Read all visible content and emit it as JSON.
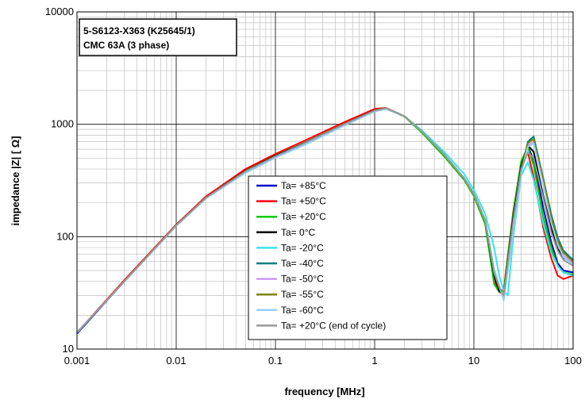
{
  "chart_data": {
    "type": "line",
    "xscale": "log",
    "yscale": "log",
    "xlim": [
      0.001,
      100
    ],
    "ylim": [
      10,
      10000
    ],
    "xlabel": "frequency [MHz]",
    "ylabel": "impedance  |Z| [ Ω]",
    "x_ticks": [
      "0.001",
      "0.01",
      "0.1",
      "1",
      "10",
      "100"
    ],
    "y_ticks": [
      "10",
      "100",
      "1000",
      "10000"
    ],
    "grid": true,
    "legend_position": "center-right",
    "annotation": [
      "5-S6123-X363 (K25645/1)",
      "CMC 63A (3 phase)"
    ],
    "series": [
      {
        "name": "Ta= +85°C",
        "color": "#0000cc",
        "x": [
          0.001,
          0.003,
          0.01,
          0.02,
          0.05,
          0.1,
          0.2,
          0.5,
          1,
          1.3,
          2,
          3,
          5,
          8,
          10,
          13,
          16,
          18,
          20,
          25,
          30,
          35,
          40,
          50,
          60,
          70,
          80,
          100
        ],
        "y": [
          13.7,
          40,
          125,
          220,
          380,
          520,
          680,
          1000,
          1320,
          1380,
          1180,
          860,
          540,
          330,
          240,
          140,
          45,
          33,
          30,
          150,
          420,
          640,
          480,
          180,
          90,
          58,
          50,
          48
        ]
      },
      {
        "name": "Ta= +50°C",
        "color": "#ff0000",
        "x": [
          0.001,
          0.003,
          0.01,
          0.02,
          0.05,
          0.1,
          0.2,
          0.5,
          1,
          1.3,
          2,
          3,
          5,
          8,
          10,
          13,
          16,
          18,
          20,
          25,
          30,
          35,
          40,
          50,
          60,
          70,
          80,
          100
        ],
        "y": [
          14,
          41,
          128,
          228,
          400,
          545,
          720,
          1050,
          1370,
          1400,
          1180,
          850,
          520,
          320,
          230,
          130,
          40,
          32,
          34,
          170,
          460,
          560,
          340,
          120,
          65,
          45,
          42,
          45
        ]
      },
      {
        "name": "Ta= +20°C",
        "color": "#00cc00",
        "x": [
          0.001,
          0.003,
          0.01,
          0.02,
          0.05,
          0.1,
          0.2,
          0.5,
          1,
          1.3,
          2,
          3,
          5,
          8,
          10,
          13,
          16,
          18,
          20,
          25,
          30,
          35,
          40,
          50,
          60,
          70,
          80,
          100
        ],
        "y": [
          14,
          40,
          126,
          222,
          385,
          525,
          690,
          1010,
          1330,
          1390,
          1170,
          840,
          520,
          320,
          230,
          130,
          38,
          32,
          33,
          165,
          470,
          630,
          430,
          150,
          80,
          55,
          48,
          46
        ]
      },
      {
        "name": "Ta= 0°C",
        "color": "#000000",
        "x": [
          0.001,
          0.003,
          0.01,
          0.02,
          0.05,
          0.1,
          0.2,
          0.5,
          1,
          1.3,
          2,
          3,
          5,
          8,
          10,
          13,
          16,
          18,
          20,
          25,
          30,
          35,
          40,
          50,
          60,
          70,
          80,
          100
        ],
        "y": [
          14,
          40,
          126,
          222,
          385,
          525,
          690,
          1010,
          1330,
          1390,
          1180,
          860,
          540,
          330,
          240,
          140,
          45,
          33,
          30,
          150,
          420,
          650,
          570,
          230,
          120,
          78,
          65,
          58
        ]
      },
      {
        "name": "Ta= -20°C",
        "color": "#33e6e6",
        "x": [
          0.001,
          0.003,
          0.01,
          0.02,
          0.05,
          0.1,
          0.2,
          0.5,
          1,
          1.3,
          2,
          3,
          5,
          8,
          10,
          13,
          16,
          18,
          20,
          22,
          25,
          30,
          35,
          40,
          50,
          60,
          70,
          80,
          100
        ],
        "y": [
          14,
          40,
          125,
          220,
          370,
          505,
          660,
          980,
          1300,
          1370,
          1180,
          880,
          570,
          360,
          260,
          160,
          80,
          45,
          33,
          30,
          100,
          350,
          460,
          320,
          130,
          72,
          55,
          48,
          45
        ]
      },
      {
        "name": "Ta= -40°C",
        "color": "#008080",
        "x": [
          0.001,
          0.003,
          0.01,
          0.02,
          0.05,
          0.1,
          0.2,
          0.5,
          1,
          1.3,
          2,
          3,
          5,
          8,
          10,
          13,
          16,
          18,
          20,
          25,
          30,
          35,
          40,
          50,
          60,
          70,
          80,
          100
        ],
        "y": [
          14,
          40,
          126,
          222,
          380,
          515,
          680,
          1000,
          1320,
          1380,
          1180,
          860,
          540,
          330,
          240,
          140,
          48,
          35,
          30,
          130,
          380,
          700,
          780,
          330,
          160,
          98,
          75,
          62
        ]
      },
      {
        "name": "Ta= -50°C",
        "color": "#cc99ff",
        "x": [
          0.001,
          0.003,
          0.01,
          0.02,
          0.05,
          0.1,
          0.2,
          0.5,
          1,
          1.3,
          2,
          3,
          5,
          8,
          10,
          13,
          16,
          18,
          20,
          25,
          30,
          35,
          40,
          50,
          60,
          70,
          80,
          100
        ],
        "y": [
          14,
          40,
          125,
          220,
          375,
          510,
          670,
          990,
          1310,
          1375,
          1180,
          860,
          540,
          330,
          240,
          140,
          50,
          36,
          28,
          120,
          380,
          650,
          700,
          300,
          140,
          88,
          68,
          58
        ]
      },
      {
        "name": "Ta= -55°C",
        "color": "#808000",
        "x": [
          0.001,
          0.003,
          0.01,
          0.02,
          0.05,
          0.1,
          0.2,
          0.5,
          1,
          1.3,
          2,
          3,
          5,
          8,
          10,
          13,
          16,
          18,
          20,
          25,
          30,
          35,
          40,
          50,
          60,
          70,
          80,
          100
        ],
        "y": [
          14,
          40,
          126,
          222,
          382,
          518,
          684,
          1005,
          1325,
          1385,
          1180,
          860,
          540,
          330,
          240,
          140,
          48,
          35,
          29,
          125,
          390,
          680,
          740,
          320,
          150,
          92,
          72,
          60
        ]
      },
      {
        "name": "Ta= -60°C",
        "color": "#99ccff",
        "x": [
          0.001,
          0.003,
          0.01,
          0.02,
          0.05,
          0.1,
          0.2,
          0.5,
          1,
          1.3,
          2,
          3,
          5,
          8,
          10,
          13,
          16,
          18,
          20,
          25,
          30,
          35,
          40,
          50,
          60,
          70,
          80,
          100
        ],
        "y": [
          14,
          40,
          125,
          220,
          372,
          505,
          665,
          985,
          1305,
          1372,
          1180,
          860,
          540,
          330,
          240,
          140,
          52,
          37,
          27,
          115,
          370,
          630,
          680,
          290,
          135,
          85,
          66,
          56
        ]
      },
      {
        "name": "Ta= +20°C (end of cycle)",
        "color": "#999999",
        "x": [
          0.001,
          0.003,
          0.01,
          0.02,
          0.05,
          0.1,
          0.2,
          0.5,
          1,
          1.3,
          2,
          3,
          5,
          8,
          10,
          13,
          16,
          18,
          20,
          25,
          30,
          35,
          40,
          50,
          60,
          70,
          80,
          100
        ],
        "y": [
          14,
          40,
          126,
          222,
          382,
          518,
          684,
          1005,
          1325,
          1390,
          1180,
          860,
          540,
          330,
          240,
          140,
          48,
          36,
          30,
          140,
          400,
          560,
          500,
          220,
          110,
          75,
          62,
          55
        ]
      }
    ]
  }
}
